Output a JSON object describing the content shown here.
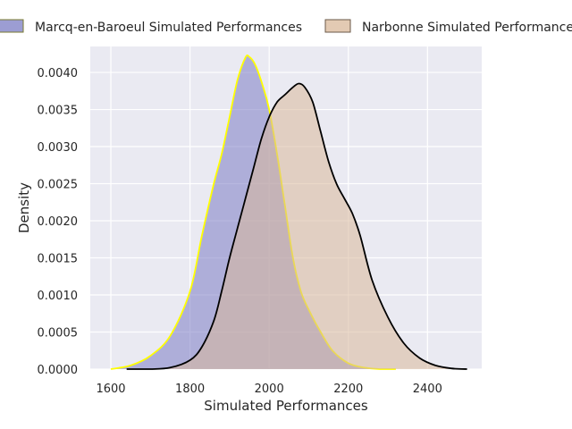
{
  "chart_data": {
    "type": "area",
    "title": "",
    "xlabel": "Simulated Performances",
    "ylabel": "Density",
    "xlim": [
      1548,
      2537
    ],
    "ylim": [
      0,
      0.00435
    ],
    "x_ticks": [
      1600,
      1800,
      2000,
      2200,
      2400
    ],
    "y_ticks": [
      0.0,
      0.0005,
      0.001,
      0.0015,
      0.002,
      0.0025,
      0.003,
      0.0035,
      0.004
    ],
    "x_tick_labels": [
      "1600",
      "1800",
      "2000",
      "2200",
      "2400"
    ],
    "y_tick_labels": [
      "0.0000",
      "0.0005",
      "0.0010",
      "0.0015",
      "0.0020",
      "0.0025",
      "0.0030",
      "0.0035",
      "0.0040"
    ],
    "grid": true,
    "legend_position": "top",
    "series": [
      {
        "name": "Marcq-en-Baroeul Simulated Performances",
        "fill": "#7b7cc4",
        "fill_opacity": 0.55,
        "line": "#ffff00",
        "x": [
          1600,
          1650,
          1700,
          1750,
          1800,
          1830,
          1860,
          1880,
          1900,
          1920,
          1940,
          1950,
          1965,
          1985,
          2000,
          2020,
          2040,
          2060,
          2080,
          2100,
          2130,
          2160,
          2200,
          2240,
          2280,
          2320
        ],
        "y": [
          0.0,
          5e-05,
          0.00018,
          0.00045,
          0.00105,
          0.0018,
          0.0025,
          0.0029,
          0.0034,
          0.0039,
          0.0042,
          0.00421,
          0.0041,
          0.0038,
          0.0035,
          0.0029,
          0.0022,
          0.0015,
          0.00105,
          0.0008,
          0.0005,
          0.00025,
          8e-05,
          2e-05,
          0.0,
          0.0
        ]
      },
      {
        "name": "Narbonne Simulated Performances",
        "fill": "#d9b89a",
        "fill_opacity": 0.55,
        "line": "#000000",
        "x": [
          1640,
          1700,
          1750,
          1800,
          1830,
          1860,
          1880,
          1900,
          1920,
          1940,
          1960,
          1980,
          2000,
          2020,
          2040,
          2060,
          2075,
          2090,
          2110,
          2130,
          2150,
          2170,
          2190,
          2210,
          2230,
          2260,
          2300,
          2340,
          2380,
          2420,
          2460,
          2500
        ],
        "y": [
          0.0,
          0.0,
          2e-05,
          0.00012,
          0.0003,
          0.00065,
          0.00105,
          0.0015,
          0.0019,
          0.0023,
          0.0027,
          0.0031,
          0.0034,
          0.0036,
          0.0037,
          0.0038,
          0.00385,
          0.0038,
          0.0036,
          0.0032,
          0.0028,
          0.0025,
          0.0023,
          0.0021,
          0.0018,
          0.0012,
          0.0007,
          0.00035,
          0.00015,
          5e-05,
          1e-05,
          0.0
        ]
      }
    ]
  }
}
